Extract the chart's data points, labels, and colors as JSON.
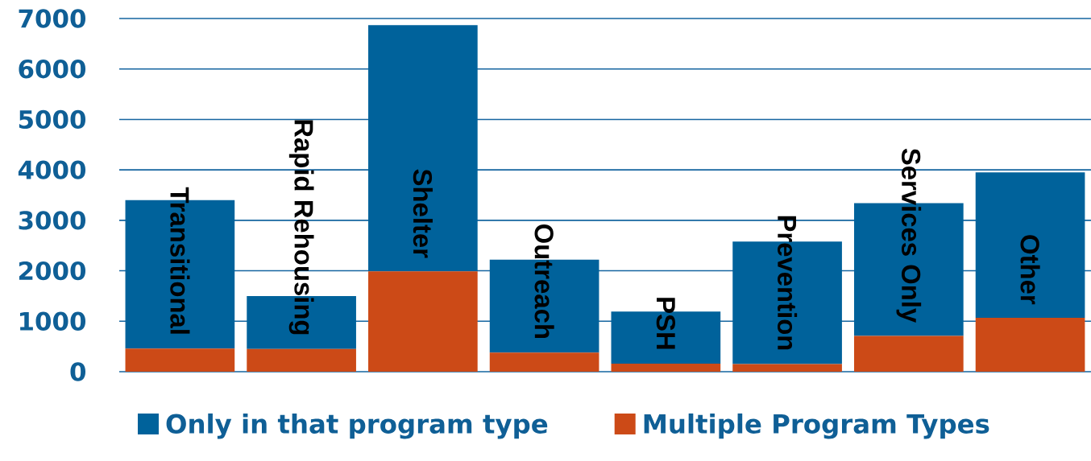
{
  "chart_data": {
    "type": "bar",
    "stacked": true,
    "categories": [
      "Transitional",
      "Rapid Rehousing",
      "Shelter",
      "Outreach",
      "PSH",
      "Prevention",
      "Services Only",
      "Other"
    ],
    "series": [
      {
        "name": "Multiple Program Types",
        "color": "#cc4a17",
        "values": [
          460,
          450,
          1990,
          380,
          160,
          150,
          710,
          1070
        ]
      },
      {
        "name": "Only in that program type",
        "color": "#00629b",
        "values": [
          2940,
          1050,
          4880,
          1840,
          1030,
          2430,
          2630,
          2880
        ]
      }
    ],
    "ylim": [
      0,
      7000
    ],
    "yticks": [
      0,
      1000,
      2000,
      3000,
      4000,
      5000,
      6000,
      7000
    ],
    "grid": "y",
    "legend": "bottom"
  }
}
